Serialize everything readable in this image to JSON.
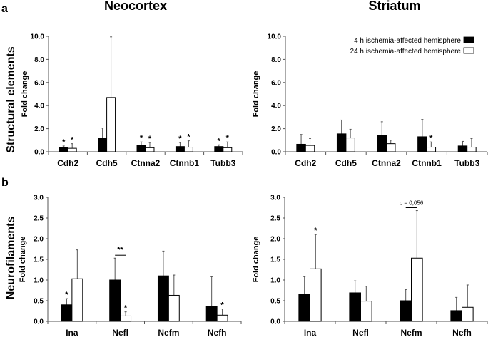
{
  "panel_letters": [
    "a",
    "b"
  ],
  "column_titles": [
    "Neocortex",
    "Striatum"
  ],
  "row_titles": [
    "Structural elements",
    "Neurofilaments"
  ],
  "colors": {
    "series_4h": "#000000",
    "series_24h": "#ffffff",
    "axis": "#555555"
  },
  "chart_data": [
    {
      "type": "bar",
      "title": "Neocortex",
      "row": "Structural elements",
      "ylabel": "Fold change",
      "ylim": [
        0,
        10
      ],
      "yticks": [
        "0.0",
        "2.0",
        "4.0",
        "6.0",
        "8.0",
        "10.0"
      ],
      "categories": [
        "Cdh2",
        "Cdh5",
        "Ctnna2",
        "Ctnnb1",
        "Tubb3"
      ],
      "series": [
        {
          "name": "4 h ischemia-affected hemisphere",
          "values": [
            0.35,
            1.2,
            0.55,
            0.45,
            0.45
          ],
          "error_top": [
            0.5,
            2.05,
            0.85,
            0.8,
            0.6
          ],
          "marks": [
            "*",
            "",
            "*",
            "*",
            "*"
          ]
        },
        {
          "name": "24 h ischemia-affected hemisphere",
          "values": [
            0.3,
            4.7,
            0.35,
            0.4,
            0.35
          ],
          "error_top": [
            0.7,
            9.95,
            0.8,
            0.95,
            0.85
          ],
          "marks": [
            "*",
            "",
            "*",
            "*",
            "*"
          ]
        }
      ],
      "brackets": []
    },
    {
      "type": "bar",
      "title": "Striatum",
      "row": "Structural elements",
      "ylabel": "Fold change",
      "ylim": [
        0,
        10
      ],
      "yticks": [
        "0.0",
        "2.0",
        "4.0",
        "6.0",
        "8.0",
        "10.0"
      ],
      "categories": [
        "Cdh2",
        "Cdh5",
        "Ctnna2",
        "Ctnnb1",
        "Tubb3"
      ],
      "legend": {
        "placement": "top-right",
        "entries": [
          "4 h ischemia-affected hemisphere",
          "24 h ischemia-affected hemisphere"
        ]
      },
      "series": [
        {
          "name": "4 h ischemia-affected hemisphere",
          "values": [
            0.65,
            1.55,
            1.4,
            1.3,
            0.5
          ],
          "error_top": [
            1.5,
            2.75,
            2.6,
            2.8,
            0.9
          ],
          "marks": [
            "",
            "",
            "",
            "",
            ""
          ]
        },
        {
          "name": "24 h ischemia-affected hemisphere",
          "values": [
            0.55,
            1.2,
            0.7,
            0.4,
            0.4
          ],
          "error_top": [
            1.15,
            1.95,
            1.0,
            0.85,
            1.15
          ],
          "marks": [
            "",
            "",
            "",
            "*",
            ""
          ]
        }
      ],
      "brackets": []
    },
    {
      "type": "bar",
      "title": "Neocortex",
      "row": "Neurofilaments",
      "ylabel": "Fold change",
      "ylim": [
        0,
        3
      ],
      "yticks": [
        "0.0",
        "0.5",
        "1.0",
        "1.5",
        "2.0",
        "2.5",
        "3.0"
      ],
      "categories": [
        "Ina",
        "Nefl",
        "Nefm",
        "Nefh"
      ],
      "series": [
        {
          "name": "4 h ischemia-affected hemisphere",
          "values": [
            0.4,
            1.0,
            1.1,
            0.37
          ],
          "error_top": [
            0.55,
            1.53,
            1.7,
            1.08
          ],
          "marks": [
            "*",
            "",
            "",
            ""
          ]
        },
        {
          "name": "24 h ischemia-affected hemisphere",
          "values": [
            1.03,
            0.13,
            0.63,
            0.15
          ],
          "error_top": [
            1.73,
            0.23,
            1.12,
            0.3
          ],
          "marks": [
            "",
            "*",
            "",
            "*"
          ]
        }
      ],
      "brackets": [
        {
          "category": 1,
          "y": 1.6,
          "label": "**"
        }
      ]
    },
    {
      "type": "bar",
      "title": "Striatum",
      "row": "Neurofilaments",
      "ylabel": "Fold change",
      "ylim": [
        0,
        3
      ],
      "yticks": [
        "0.0",
        "0.5",
        "1.0",
        "1.5",
        "2.0",
        "2.5",
        "3.0"
      ],
      "categories": [
        "Ina",
        "Nefl",
        "Nefm",
        "Nefh"
      ],
      "series": [
        {
          "name": "4 h ischemia-affected hemisphere",
          "values": [
            0.65,
            0.69,
            0.5,
            0.26
          ],
          "error_top": [
            1.08,
            0.98,
            0.77,
            0.58
          ],
          "marks": [
            "",
            "",
            "",
            ""
          ]
        },
        {
          "name": "24 h ischemia-affected hemisphere",
          "values": [
            1.27,
            0.49,
            1.53,
            0.34
          ],
          "error_top": [
            2.1,
            0.85,
            2.68,
            0.88
          ],
          "marks": [
            "*",
            "",
            "",
            ""
          ]
        }
      ],
      "brackets": [
        {
          "category": 2,
          "y": 2.75,
          "label": "p = 0,056"
        }
      ]
    }
  ]
}
